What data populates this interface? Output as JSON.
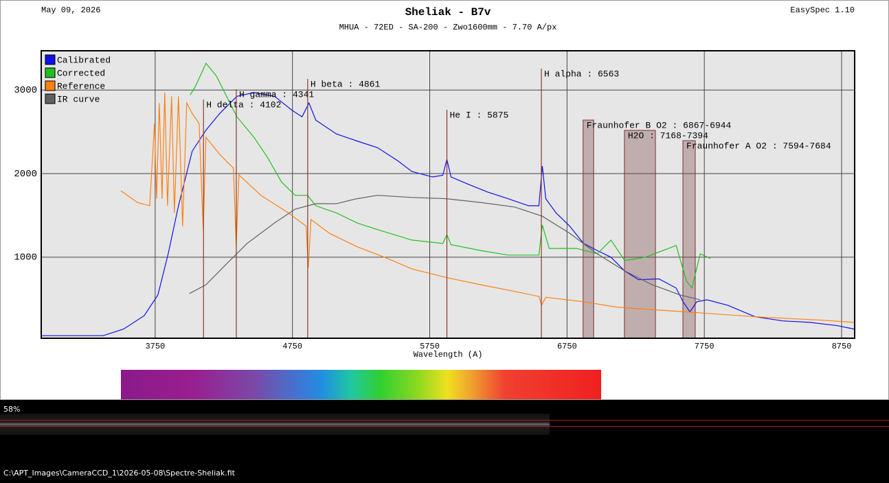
{
  "header": {
    "date": "May 09, 2026",
    "version": "EasySpec 1.10"
  },
  "chart_data": {
    "type": "line",
    "title": "Sheliak - B7v",
    "subtitle": "MHUA - 72ED - SA-200 - Zwo1600mm - 7.70 A/px",
    "x_label": "Wavelength (A)",
    "xlim": [
      2920,
      8845
    ],
    "ylim": [
      30,
      3470
    ],
    "xticks": [
      3750,
      4750,
      5750,
      6750,
      7750,
      8750
    ],
    "yticks": [
      1000,
      2000,
      3000
    ],
    "grid": true,
    "legend": "upper left",
    "series": [
      {
        "name": "Calibrated",
        "color": "#1010e8",
        "x": [
          2920,
          3370,
          3520,
          3670,
          3770,
          3845,
          3920,
          4020,
          4120,
          4220,
          4345,
          4470,
          4620,
          4745,
          4820,
          4870,
          4920,
          5070,
          5220,
          5370,
          5520,
          5620,
          5770,
          5845,
          5875,
          5905,
          6020,
          6170,
          6320,
          6470,
          6545,
          6570,
          6595,
          6670,
          6770,
          6870,
          6970,
          7070,
          7170,
          7270,
          7420,
          7545,
          7595,
          7645,
          7695,
          7770,
          7920,
          8120,
          8320,
          8520,
          8720,
          8840
        ],
        "values": [
          60,
          60,
          140,
          300,
          550,
          1040,
          1615,
          2270,
          2520,
          2720,
          2925,
          2970,
          2925,
          2760,
          2680,
          2845,
          2640,
          2475,
          2390,
          2310,
          2150,
          2025,
          1960,
          1980,
          2170,
          1960,
          1880,
          1780,
          1700,
          1615,
          1615,
          2090,
          1700,
          1530,
          1370,
          1165,
          1080,
          1000,
          835,
          730,
          740,
          630,
          467,
          345,
          467,
          490,
          425,
          287,
          238,
          220,
          180,
          140
        ]
      },
      {
        "name": "Corrected",
        "color": "#20c020",
        "x": [
          4005,
          4045,
          4120,
          4195,
          4270,
          4345,
          4470,
          4570,
          4670,
          4770,
          4860,
          4920,
          5070,
          5220,
          5370,
          5620,
          5845,
          5875,
          5905,
          6120,
          6320,
          6545,
          6570,
          6620,
          6820,
          6970,
          7070,
          7170,
          7320,
          7545,
          7620,
          7660,
          7720,
          7795
        ],
        "values": [
          2940,
          3050,
          3320,
          3170,
          2925,
          2680,
          2435,
          2190,
          1900,
          1740,
          1740,
          1615,
          1530,
          1410,
          1330,
          1205,
          1165,
          1270,
          1150,
          1080,
          1025,
          1025,
          1385,
          1105,
          1105,
          1040,
          1205,
          960,
          1000,
          1140,
          715,
          630,
          1040,
          985
        ]
      },
      {
        "name": "Reference",
        "color": "#ff8010",
        "x": [
          3500,
          3620,
          3710,
          3745,
          3760,
          3780,
          3800,
          3820,
          3840,
          3870,
          3890,
          3920,
          3950,
          3980,
          4020,
          4070,
          4100,
          4120,
          4220,
          4320,
          4340,
          4360,
          4520,
          4720,
          4850,
          4865,
          4885,
          5020,
          5220,
          5420,
          5620,
          5875,
          6120,
          6370,
          6545,
          6565,
          6595,
          6870,
          7120,
          7620,
          8120,
          8620,
          8840
        ],
        "values": [
          1795,
          1655,
          1615,
          2600,
          1700,
          2845,
          1700,
          2970,
          1615,
          2925,
          1530,
          2925,
          1370,
          2845,
          2720,
          2600,
          1330,
          2435,
          2230,
          2065,
          1125,
          1985,
          1740,
          1530,
          1370,
          875,
          1450,
          1285,
          1125,
          1000,
          860,
          755,
          670,
          590,
          530,
          425,
          520,
          467,
          400,
          345,
          287,
          245,
          220
        ]
      },
      {
        "name": "IR curve",
        "color": "#606060",
        "x": [
          4000,
          4120,
          4270,
          4420,
          4620,
          4770,
          4920,
          5070,
          5220,
          5370,
          5620,
          5870,
          6120,
          6370,
          6570,
          6770,
          6970,
          7170,
          7370,
          7570,
          7720
        ],
        "values": [
          565,
          670,
          920,
          1165,
          1410,
          1575,
          1640,
          1640,
          1700,
          1740,
          1715,
          1700,
          1655,
          1600,
          1490,
          1285,
          1040,
          835,
          670,
          550,
          490
        ]
      }
    ],
    "annotations": [
      {
        "label": "H delta : 4102",
        "x": 4102
      },
      {
        "label": "H gamma : 4341",
        "x": 4341
      },
      {
        "label": "H beta : 4861",
        "x": 4861
      },
      {
        "label": "He I : 5875",
        "x": 5875
      },
      {
        "label": "H alpha : 6563",
        "x": 6563
      }
    ],
    "bands": [
      {
        "label": "Fraunhofer B O2 : 6867-6944",
        "range": [
          6867,
          6944
        ]
      },
      {
        "label": "H2O : 7168-7394",
        "range": [
          7168,
          7394
        ]
      },
      {
        "label": "Fraunhofer A O2 : 7594-7684",
        "range": [
          7594,
          7684
        ]
      }
    ]
  },
  "status": {
    "zoom": "58%",
    "path": "C:\\APT_Images\\CameraCCD_1\\2026-05-08\\Spectre-Sheliak.fit"
  }
}
